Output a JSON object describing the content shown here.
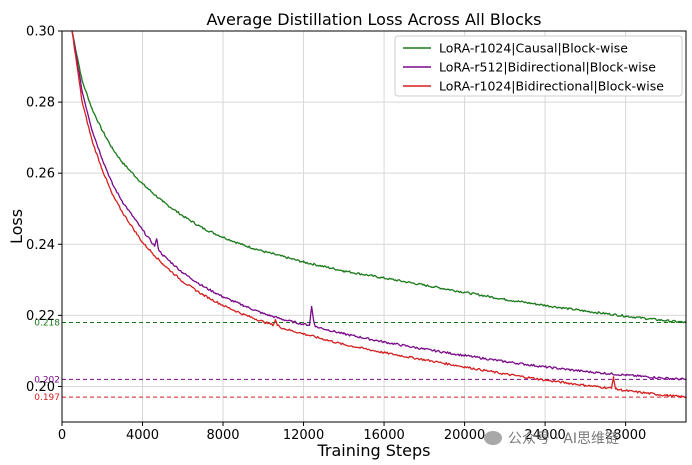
{
  "chart_data": {
    "type": "line",
    "title": "Average Distillation Loss Across All Blocks",
    "xlabel": "Training Steps",
    "ylabel": "Loss",
    "xlim": [
      0,
      31000
    ],
    "ylim": [
      0.19,
      0.3
    ],
    "xticks": [
      0,
      4000,
      8000,
      12000,
      16000,
      20000,
      24000,
      28000
    ],
    "xtick_labels": [
      "0",
      "4000",
      "8000",
      "12000",
      "16000",
      "20000",
      "24000",
      "28000"
    ],
    "yticks": [
      0.2,
      0.22,
      0.24,
      0.26,
      0.28,
      0.3
    ],
    "ytick_labels": [
      "0.20",
      "0.22",
      "0.24",
      "0.26",
      "0.28",
      "0.30"
    ],
    "grid": true,
    "legend_position": "top-right",
    "series": [
      {
        "name": "LoRA-r1024|Causal|Block-wise",
        "color": "#1a7a1a",
        "x": [
          500,
          1000,
          1500,
          2000,
          2500,
          3000,
          4000,
          5000,
          6000,
          7000,
          8000,
          9000,
          10000,
          12000,
          14000,
          16000,
          18000,
          20000,
          22000,
          24000,
          26000,
          28000,
          30000,
          31000
        ],
        "y": [
          0.3,
          0.286,
          0.278,
          0.272,
          0.267,
          0.263,
          0.257,
          0.252,
          0.248,
          0.2445,
          0.242,
          0.2398,
          0.238,
          0.235,
          0.2325,
          0.2305,
          0.2285,
          0.2265,
          0.2245,
          0.2228,
          0.2212,
          0.2198,
          0.2185,
          0.218
        ]
      },
      {
        "name": "LoRA-r512|Bidirectional|Block-wise",
        "color": "#7a0a8a",
        "x": [
          500,
          1000,
          1500,
          2000,
          2500,
          3000,
          4000,
          4600,
          4700,
          4800,
          5000,
          6000,
          7000,
          8000,
          9000,
          10000,
          11000,
          12000,
          12300,
          12400,
          12500,
          12600,
          14000,
          16000,
          18000,
          20000,
          22000,
          24000,
          26000,
          28000,
          30000,
          31000
        ],
        "y": [
          0.3,
          0.283,
          0.272,
          0.264,
          0.257,
          0.252,
          0.244,
          0.2395,
          0.2415,
          0.2385,
          0.237,
          0.232,
          0.2282,
          0.2252,
          0.2228,
          0.2205,
          0.2188,
          0.2175,
          0.2173,
          0.2225,
          0.2185,
          0.2168,
          0.2148,
          0.2125,
          0.2105,
          0.2087,
          0.207,
          0.2055,
          0.2042,
          0.2032,
          0.2023,
          0.202
        ]
      },
      {
        "name": "LoRA-r1024|Bidirectional|Block-wise",
        "color": "#d42020",
        "x": [
          500,
          1000,
          1500,
          2000,
          2500,
          3000,
          4000,
          5000,
          6000,
          7000,
          8000,
          9000,
          10000,
          10500,
          10600,
          10700,
          11000,
          12000,
          14000,
          16000,
          18000,
          20000,
          22000,
          24000,
          26000,
          27300,
          27400,
          27500,
          28000,
          30000,
          31000
        ],
        "y": [
          0.3,
          0.28,
          0.269,
          0.261,
          0.254,
          0.249,
          0.2405,
          0.2345,
          0.2295,
          0.2258,
          0.2228,
          0.2203,
          0.2182,
          0.2173,
          0.2188,
          0.2172,
          0.2163,
          0.2148,
          0.2118,
          0.2095,
          0.2075,
          0.2055,
          0.2035,
          0.2018,
          0.2003,
          0.1995,
          0.2027,
          0.1993,
          0.1988,
          0.1975,
          0.197
        ]
      }
    ],
    "reference_lines": [
      {
        "y": 0.218,
        "label": "0.218",
        "color": "#1a7a1a"
      },
      {
        "y": 0.202,
        "label": "0.202",
        "color": "#7a0a8a"
      },
      {
        "y": 0.197,
        "label": "0.197",
        "color": "#d42020"
      }
    ]
  },
  "watermark": {
    "text": "公众号 · AI思维链",
    "icon": "wechat-icon"
  }
}
